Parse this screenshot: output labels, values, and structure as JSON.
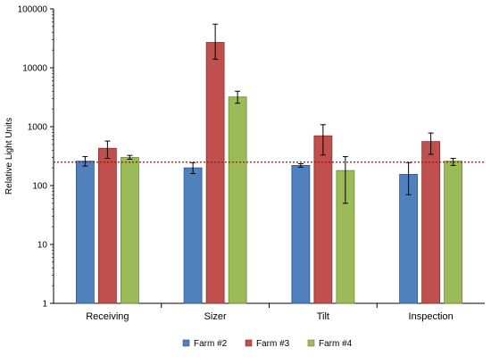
{
  "chart_data": {
    "type": "bar",
    "ylabel": "Relative Light Units",
    "xlabel": "",
    "yscale": "log",
    "ylim": [
      1,
      100000
    ],
    "yticks": [
      "1",
      "10",
      "100",
      "1000",
      "10000",
      "100000"
    ],
    "categories": [
      "Receiving",
      "Sizer",
      "Tilt",
      "Inspection"
    ],
    "series": [
      {
        "name": "Farm #2",
        "color": "#4f81bd",
        "edge": "#2f5597",
        "values": [
          260,
          200,
          220,
          155
        ],
        "error": [
          [
            215,
            310
          ],
          [
            160,
            245
          ],
          [
            205,
            235
          ],
          [
            70,
            245
          ]
        ]
      },
      {
        "name": "Farm #3",
        "color": "#c0504d",
        "edge": "#8c2f2d",
        "values": [
          430,
          27000,
          700,
          560
        ],
        "error": [
          [
            290,
            570
          ],
          [
            14000,
            55000
          ],
          [
            330,
            1080
          ],
          [
            340,
            780
          ]
        ]
      },
      {
        "name": "Farm #4",
        "color": "#9bbb59",
        "edge": "#6b8a32",
        "values": [
          300,
          3200,
          180,
          260
        ],
        "error": [
          [
            280,
            325
          ],
          [
            2500,
            4000
          ],
          [
            50,
            310
          ],
          [
            220,
            290
          ]
        ]
      }
    ],
    "reference_line": {
      "value": 250,
      "color": "#c00000",
      "style": "dotted"
    },
    "legend": {
      "placement": "bottom"
    },
    "grid": false
  }
}
